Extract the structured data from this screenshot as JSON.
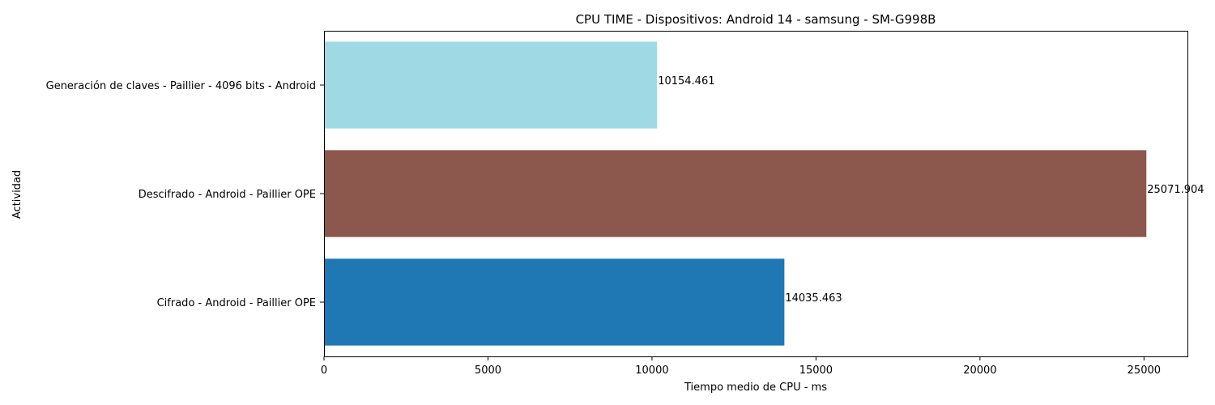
{
  "chart_data": {
    "type": "bar",
    "orientation": "horizontal",
    "title": "CPU TIME - Dispositivos: Android 14 - samsung - SM-G998B",
    "xlabel": "Tiempo medio de CPU - ms",
    "ylabel": "Actividad",
    "xlim": [
      0,
      26325
    ],
    "xticks": [
      0,
      5000,
      10000,
      15000,
      20000,
      25000
    ],
    "grid": false,
    "categories": [
      "Generación de claves - Paillier - 4096 bits - Android",
      "Descifrado - Android - Paillier OPE",
      "Cifrado - Android - Paillier OPE"
    ],
    "values": [
      10154.461,
      25071.904,
      14035.463
    ],
    "value_labels": [
      "10154.461",
      "25071.904",
      "14035.463"
    ],
    "colors": [
      "#9fdae4",
      "#8c574c",
      "#1f77b4"
    ]
  }
}
